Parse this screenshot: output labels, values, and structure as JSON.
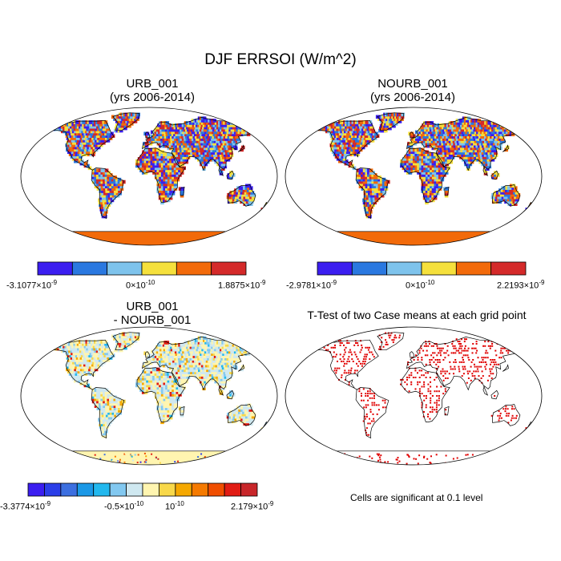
{
  "figure": {
    "title": "DJF ERRSOI (W/m^2)",
    "note": "Cells are significant at 0.1 level"
  },
  "colors": {
    "ocean": "#ffffff",
    "land_outline": "#000000",
    "antarctica_case": "#f26a0a",
    "significant": "#e00000"
  },
  "chart_data": [
    {
      "type": "heatmap",
      "panel": "top-left",
      "title_line1": "URB_001",
      "title_line2": "(yrs 2006-2014)",
      "colorbar": {
        "colors": [
          "#3b1ef0",
          "#2a78e0",
          "#7ec3ec",
          "#f5e03c",
          "#f26a0a",
          "#d42a2a"
        ],
        "label_min": "-3.1077×10",
        "label_min_exp": "-9",
        "label_mid": "0×10",
        "label_mid_exp": "-10",
        "label_max": "1.8875×10",
        "label_max_exp": "-9"
      }
    },
    {
      "type": "heatmap",
      "panel": "top-right",
      "title_line1": "NOURB_001",
      "title_line2": "(yrs 2006-2014)",
      "colorbar": {
        "colors": [
          "#3b1ef0",
          "#2a78e0",
          "#7ec3ec",
          "#f5e03c",
          "#f26a0a",
          "#d42a2a"
        ],
        "label_min": "-2.9781×10",
        "label_min_exp": "-9",
        "label_mid": "0×10",
        "label_mid_exp": "-10",
        "label_max": "2.2193×10",
        "label_max_exp": "-9"
      }
    },
    {
      "type": "heatmap",
      "panel": "bottom-left",
      "title_line1": "URB_001",
      "title_line2": "- NOURB_001",
      "colorbar": {
        "colors": [
          "#3b1ef0",
          "#2b3ee8",
          "#3c6fe0",
          "#1b98e6",
          "#22b8ee",
          "#82c8f0",
          "#cfe8f0",
          "#fff5b0",
          "#f8d84a",
          "#f5a800",
          "#f57a00",
          "#f04e00",
          "#e11c14",
          "#c8262a"
        ],
        "label_min": "-3.3774×10",
        "label_min_exp": "-9",
        "label_mid": "-0.5×10",
        "label_mid_exp": "-10",
        "label_mid2": "10",
        "label_mid2_exp": "-10",
        "label_max": "2.179×10",
        "label_max_exp": "-9"
      }
    },
    {
      "type": "scatter",
      "panel": "bottom-right",
      "title": "T-Test of two Case means at each grid point"
    }
  ]
}
